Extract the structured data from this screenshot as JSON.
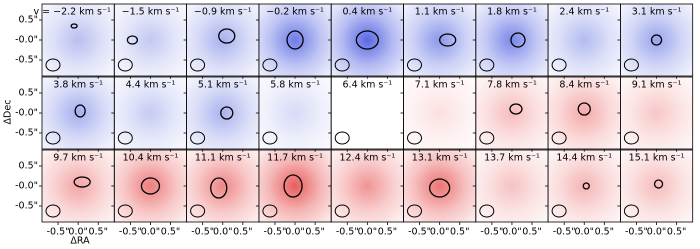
{
  "chart_data": {
    "type": "channel_map",
    "xlabel": "ΔRA",
    "ylabel": "ΔDec",
    "xlim": [
      -0.9,
      0.9
    ],
    "ylim": [
      -0.9,
      0.9
    ],
    "xticks": [
      {
        "value": -0.5,
        "label": "-0.5\""
      },
      {
        "value": 0,
        "label": "0.0\""
      },
      {
        "value": 0.5,
        "label": "0.5\""
      }
    ],
    "yticks": [
      {
        "value": 0.5,
        "label": "0.5\""
      },
      {
        "value": 0,
        "label": "-0.0\""
      },
      {
        "value": -0.5,
        "label": "-0.5\""
      }
    ],
    "panels": [
      {
        "label": "v = −2.2 km s⁻¹",
        "color": "#b8bff0"
      },
      {
        "label": "−1.5 km s⁻¹",
        "color": "#c2c8f2"
      },
      {
        "label": "−0.9 km s⁻¹",
        "color": "#a9b1ee"
      },
      {
        "label": "−0.2 km s⁻¹",
        "color": "#6f7ce6"
      },
      {
        "label": "0.4 km s⁻¹",
        "color": "#5a69e3"
      },
      {
        "label": "1.1 km s⁻¹",
        "color": "#8c97ea"
      },
      {
        "label": "1.8 km s⁻¹",
        "color": "#7a86e8"
      },
      {
        "label": "2.4 km s⁻¹",
        "color": "#b3bbf0"
      },
      {
        "label": "3.1 km s⁻¹",
        "color": "#9aa4ec"
      },
      {
        "label": "3.8 km s⁻¹",
        "color": "#a5aeee"
      },
      {
        "label": "4.4 km s⁻¹",
        "color": "#c5cbf3"
      },
      {
        "label": "5.1 km s⁻¹",
        "color": "#aab2ee"
      },
      {
        "label": "5.8 km s⁻¹",
        "color": "#d6daf6"
      },
      {
        "label": "6.4 km s⁻¹",
        "color": "#ffffff"
      },
      {
        "label": "7.1 km s⁻¹",
        "color": "#fbe0e0"
      },
      {
        "label": "7.8 km s⁻¹",
        "color": "#f6bcbc"
      },
      {
        "label": "8.4 km s⁻¹",
        "color": "#f4a9a9"
      },
      {
        "label": "9.1 km s⁻¹",
        "color": "#f8c6c6"
      },
      {
        "label": "9.7 km s⁻¹",
        "color": "#f3a4a4"
      },
      {
        "label": "10.4 km s⁻¹",
        "color": "#ee7e7e"
      },
      {
        "label": "11.1 km s⁻¹",
        "color": "#ef8686"
      },
      {
        "label": "11.7 km s⁻¹",
        "color": "#e95e5e"
      },
      {
        "label": "12.4 km s⁻¹",
        "color": "#f09494"
      },
      {
        "label": "13.1 km s⁻¹",
        "color": "#ec7474"
      },
      {
        "label": "13.7 km s⁻¹",
        "color": "#f6c2c2"
      },
      {
        "label": "14.4 km s⁻¹",
        "color": "#f5b4b4"
      },
      {
        "label": "15.1 km s⁻¹",
        "color": "#f6bcbc"
      }
    ]
  }
}
